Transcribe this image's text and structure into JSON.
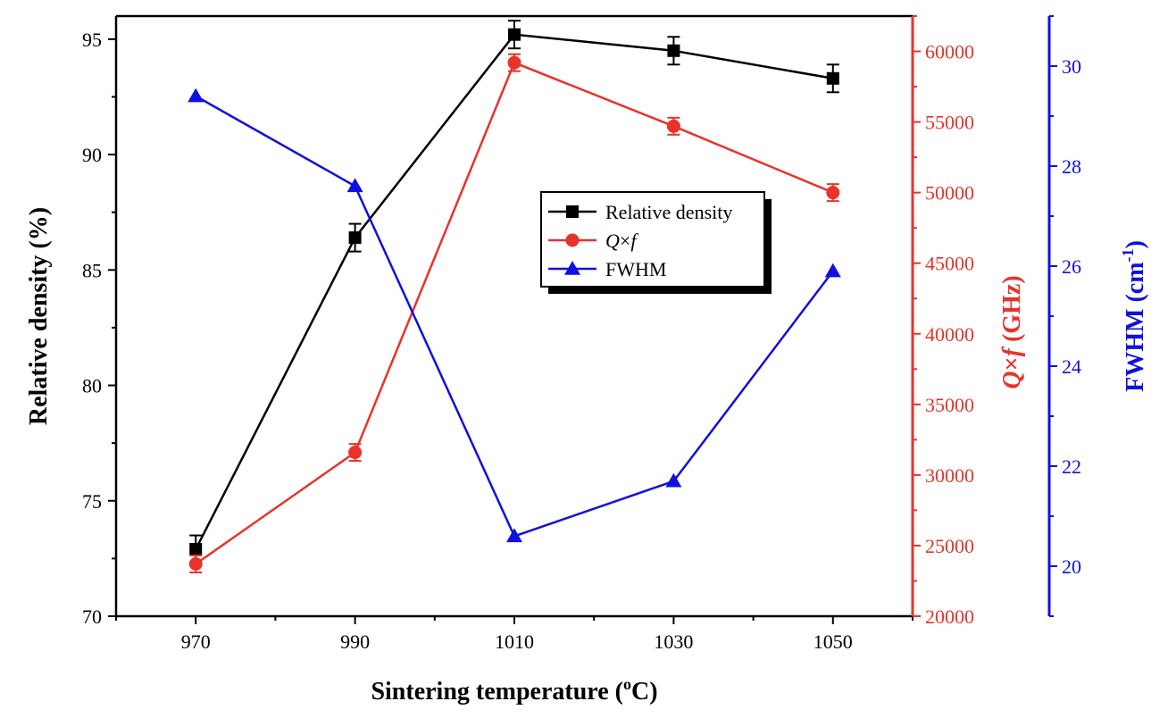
{
  "chart_data": {
    "type": "line",
    "xlabel": "Sintering temperature (",
    "xlabel_sup": "o",
    "xlabel_tail": "C)",
    "x": [
      970,
      990,
      1010,
      1030,
      1050
    ],
    "x_ticks": [
      970,
      990,
      1010,
      1030,
      1050
    ],
    "xlim": [
      960,
      1060
    ],
    "axes": {
      "left": {
        "label": "Relative density (%)",
        "ylim": [
          70,
          96
        ],
        "ticks": [
          70,
          75,
          80,
          85,
          90,
          95
        ],
        "color": "#000000"
      },
      "right1": {
        "label_q": "Q",
        "label_times": "×",
        "label_f": "f",
        "label_rest": " (GHz)",
        "ylim": [
          20000,
          62500
        ],
        "ticks": [
          20000,
          25000,
          30000,
          35000,
          40000,
          45000,
          50000,
          55000,
          60000
        ],
        "color": "#e8332a"
      },
      "right2": {
        "label_main": "FWHM (cm",
        "label_sup": "-1",
        "label_tail": ")",
        "ylim": [
          19,
          31
        ],
        "ticks": [
          20,
          22,
          24,
          26,
          28,
          30
        ],
        "color": "#1010e0"
      }
    },
    "series": [
      {
        "name": "Relative density",
        "axis": "left",
        "marker": "square",
        "color": "#000000",
        "values": [
          72.9,
          86.4,
          95.2,
          94.5,
          93.3
        ],
        "errors": [
          0.6,
          0.6,
          0.6,
          0.6,
          0.6
        ]
      },
      {
        "name_q": "Q",
        "name_times": "×",
        "name_f": "f",
        "axis": "right1",
        "marker": "circle",
        "color": "#e8332a",
        "values": [
          23700,
          31600,
          59200,
          54700,
          50000
        ],
        "errors": [
          600,
          600,
          600,
          600,
          600
        ]
      },
      {
        "name": "FWHM",
        "axis": "right2",
        "marker": "triangle",
        "color": "#1010e0",
        "values": [
          29.4,
          27.6,
          20.6,
          21.7,
          25.9
        ]
      }
    ],
    "legend": "center"
  }
}
